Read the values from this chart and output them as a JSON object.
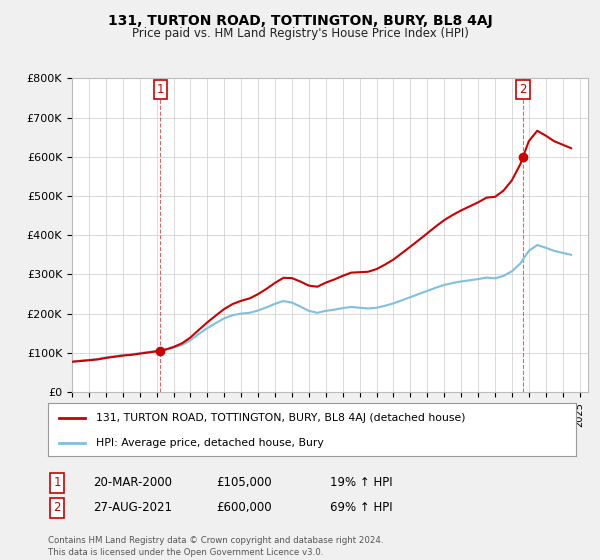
{
  "title": "131, TURTON ROAD, TOTTINGTON, BURY, BL8 4AJ",
  "subtitle": "Price paid vs. HM Land Registry's House Price Index (HPI)",
  "ylim": [
    0,
    800000
  ],
  "yticks": [
    0,
    100000,
    200000,
    300000,
    400000,
    500000,
    600000,
    700000,
    800000
  ],
  "ytick_labels": [
    "£0",
    "£100K",
    "£200K",
    "£300K",
    "£400K",
    "£500K",
    "£600K",
    "£700K",
    "£800K"
  ],
  "sale1_date": 2000.22,
  "sale1_price": 105000,
  "sale2_date": 2021.65,
  "sale2_price": 600000,
  "hpi_color": "#7fbfdf",
  "price_color": "#cc0000",
  "background_color": "#f0f0f0",
  "plot_bg_color": "#ffffff",
  "grid_color": "#cccccc",
  "legend_label_price": "131, TURTON ROAD, TOTTINGTON, BURY, BL8 4AJ (detached house)",
  "legend_label_hpi": "HPI: Average price, detached house, Bury",
  "note1_label": "1",
  "note1_date": "20-MAR-2000",
  "note1_price": "£105,000",
  "note1_hpi": "19% ↑ HPI",
  "note2_label": "2",
  "note2_date": "27-AUG-2021",
  "note2_price": "£600,000",
  "note2_hpi": "69% ↑ HPI",
  "footer": "Contains HM Land Registry data © Crown copyright and database right 2024.\nThis data is licensed under the Open Government Licence v3.0.",
  "hpi_data_years": [
    1995.0,
    1995.5,
    1996.0,
    1996.5,
    1997.0,
    1997.5,
    1998.0,
    1998.5,
    1999.0,
    1999.5,
    2000.0,
    2000.5,
    2001.0,
    2001.5,
    2002.0,
    2002.5,
    2003.0,
    2003.5,
    2004.0,
    2004.5,
    2005.0,
    2005.5,
    2006.0,
    2006.5,
    2007.0,
    2007.5,
    2008.0,
    2008.5,
    2009.0,
    2009.5,
    2010.0,
    2010.5,
    2011.0,
    2011.5,
    2012.0,
    2012.5,
    2013.0,
    2013.5,
    2014.0,
    2014.5,
    2015.0,
    2015.5,
    2016.0,
    2016.5,
    2017.0,
    2017.5,
    2018.0,
    2018.5,
    2019.0,
    2019.5,
    2020.0,
    2020.5,
    2021.0,
    2021.5,
    2022.0,
    2022.5,
    2023.0,
    2023.5,
    2024.0,
    2024.5
  ],
  "hpi_data_values": [
    78000,
    80000,
    82000,
    84000,
    88000,
    91000,
    94000,
    96000,
    99000,
    102000,
    105000,
    108000,
    113000,
    120000,
    132000,
    148000,
    163000,
    176000,
    188000,
    196000,
    200000,
    202000,
    208000,
    216000,
    225000,
    232000,
    228000,
    218000,
    207000,
    202000,
    207000,
    210000,
    214000,
    217000,
    215000,
    213000,
    215000,
    220000,
    226000,
    234000,
    242000,
    250000,
    258000,
    266000,
    273000,
    278000,
    282000,
    285000,
    288000,
    292000,
    290000,
    296000,
    308000,
    328000,
    360000,
    375000,
    368000,
    360000,
    355000,
    350000
  ]
}
